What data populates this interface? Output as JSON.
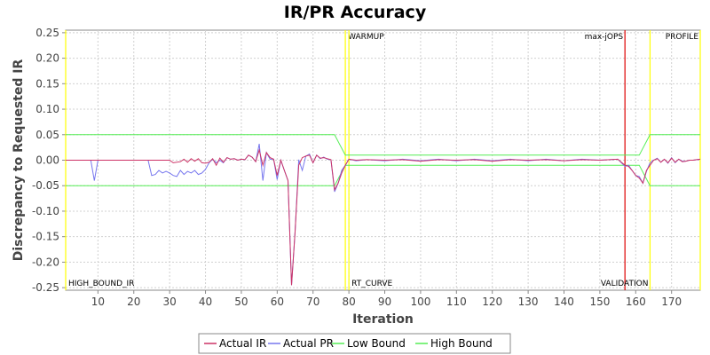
{
  "chart_data": {
    "type": "line",
    "title": "IR/PR Accuracy",
    "xlabel": "Iteration",
    "ylabel": "Discrepancy to Requested IR",
    "xlim": [
      1,
      178
    ],
    "ylim": [
      -0.255,
      0.255
    ],
    "x_ticks": [
      10,
      20,
      30,
      40,
      50,
      60,
      70,
      80,
      90,
      100,
      110,
      120,
      130,
      140,
      150,
      160,
      170
    ],
    "y_ticks": [
      0.25,
      0.2,
      0.15,
      0.1,
      0.05,
      0.0,
      -0.05,
      -0.1,
      -0.15,
      -0.2,
      -0.25
    ],
    "grid": true,
    "legend_position": "bottom",
    "markers": [
      {
        "label": "HIGH_BOUND_IR",
        "x": 1,
        "color": "#ffff00",
        "label_position": "bottom"
      },
      {
        "label": "WARMUP",
        "x": 79,
        "color": "#ffff00",
        "label_position": "top"
      },
      {
        "label": "RT_CURVE",
        "x": 80,
        "color": "#ffff00",
        "label_position": "bottom"
      },
      {
        "label": "max-jOPS",
        "x": 157,
        "color": "#dd0000",
        "label_position": "top-left"
      },
      {
        "label": "VALIDATION",
        "x": 164,
        "color": "#ffff00",
        "label_position": "bottom-left"
      },
      {
        "label": "PROFILE",
        "x": 178,
        "color": "#ffff00",
        "label_position": "top-left"
      }
    ],
    "series": [
      {
        "name": "Actual IR",
        "color": "#cc3366",
        "points": [
          [
            1,
            0
          ],
          [
            5,
            0
          ],
          [
            10,
            0
          ],
          [
            15,
            0
          ],
          [
            20,
            0
          ],
          [
            25,
            0
          ],
          [
            30,
            0
          ],
          [
            31,
            -0.005
          ],
          [
            33,
            -0.003
          ],
          [
            34,
            0.002
          ],
          [
            35,
            -0.004
          ],
          [
            36,
            0.003
          ],
          [
            37,
            -0.002
          ],
          [
            38,
            0.003
          ],
          [
            39,
            -0.005
          ],
          [
            40,
            -0.006
          ],
          [
            41,
            -0.004
          ],
          [
            42,
            0.003
          ],
          [
            43,
            -0.01
          ],
          [
            44,
            0.004
          ],
          [
            45,
            -0.004
          ],
          [
            46,
            0.005
          ],
          [
            47,
            0.002
          ],
          [
            48,
            0.003
          ],
          [
            49,
            0
          ],
          [
            50,
            0.002
          ],
          [
            51,
            0.001
          ],
          [
            52,
            0.01
          ],
          [
            53,
            0.006
          ],
          [
            54,
            -0.003
          ],
          [
            55,
            0.02
          ],
          [
            56,
            -0.01
          ],
          [
            57,
            0.015
          ],
          [
            58,
            0.005
          ],
          [
            59,
            0.002
          ],
          [
            60,
            -0.03
          ],
          [
            61,
            0
          ],
          [
            62,
            -0.02
          ],
          [
            63,
            -0.04
          ],
          [
            64,
            -0.245
          ],
          [
            65,
            -0.14
          ],
          [
            66,
            -0.01
          ],
          [
            67,
            0.005
          ],
          [
            68,
            0.008
          ],
          [
            69,
            0.01
          ],
          [
            70,
            -0.005
          ],
          [
            71,
            0.01
          ],
          [
            72,
            0.004
          ],
          [
            73,
            0.005
          ],
          [
            74,
            0.003
          ],
          [
            75,
            0.001
          ],
          [
            76,
            -0.058
          ],
          [
            77,
            -0.045
          ],
          [
            78,
            -0.025
          ],
          [
            79,
            -0.01
          ],
          [
            80,
            0.002
          ],
          [
            82,
            0
          ],
          [
            85,
            0.001
          ],
          [
            90,
            0
          ],
          [
            95,
            0.001
          ],
          [
            100,
            -0.002
          ],
          [
            105,
            0.001
          ],
          [
            110,
            0
          ],
          [
            115,
            0.001
          ],
          [
            120,
            -0.002
          ],
          [
            125,
            0.001
          ],
          [
            130,
            0
          ],
          [
            135,
            0.001
          ],
          [
            140,
            -0.001
          ],
          [
            145,
            0.001
          ],
          [
            150,
            0
          ],
          [
            155,
            0.002
          ],
          [
            157,
            -0.01
          ],
          [
            158,
            -0.012
          ],
          [
            159,
            -0.02
          ],
          [
            160,
            -0.03
          ],
          [
            161,
            -0.035
          ],
          [
            162,
            -0.045
          ],
          [
            163,
            -0.02
          ],
          [
            164,
            -0.01
          ],
          [
            165,
            0
          ],
          [
            166,
            0.003
          ],
          [
            167,
            -0.004
          ],
          [
            168,
            0.002
          ],
          [
            169,
            -0.005
          ],
          [
            170,
            0.004
          ],
          [
            171,
            -0.004
          ],
          [
            172,
            0.002
          ],
          [
            173,
            -0.003
          ],
          [
            174,
            -0.002
          ],
          [
            175,
            0
          ],
          [
            176,
            0
          ],
          [
            177,
            0.001
          ],
          [
            178,
            0.002
          ]
        ]
      },
      {
        "name": "Actual PR",
        "color": "#7777ee",
        "points": [
          [
            1,
            0
          ],
          [
            8,
            0
          ],
          [
            9,
            -0.04
          ],
          [
            10,
            0
          ],
          [
            15,
            0
          ],
          [
            20,
            0
          ],
          [
            24,
            0
          ],
          [
            25,
            -0.03
          ],
          [
            26,
            -0.028
          ],
          [
            27,
            -0.02
          ],
          [
            28,
            -0.025
          ],
          [
            29,
            -0.022
          ],
          [
            30,
            -0.025
          ],
          [
            31,
            -0.03
          ],
          [
            32,
            -0.032
          ],
          [
            33,
            -0.02
          ],
          [
            34,
            -0.028
          ],
          [
            35,
            -0.022
          ],
          [
            36,
            -0.025
          ],
          [
            37,
            -0.02
          ],
          [
            38,
            -0.028
          ],
          [
            39,
            -0.025
          ],
          [
            40,
            -0.018
          ],
          [
            41,
            -0.005
          ],
          [
            42,
            0.002
          ],
          [
            43,
            -0.005
          ],
          [
            44,
            0
          ],
          [
            45,
            -0.005
          ],
          [
            46,
            0.005
          ],
          [
            47,
            0.002
          ],
          [
            48,
            0.003
          ],
          [
            49,
            0
          ],
          [
            50,
            0.002
          ],
          [
            51,
            0.001
          ],
          [
            52,
            0.01
          ],
          [
            53,
            0.006
          ],
          [
            54,
            -0.003
          ],
          [
            55,
            0.032
          ],
          [
            56,
            -0.04
          ],
          [
            57,
            0.015
          ],
          [
            58,
            0.002
          ],
          [
            59,
            0.002
          ],
          [
            60,
            -0.038
          ],
          [
            61,
            0
          ],
          [
            62,
            -0.02
          ],
          [
            63,
            -0.04
          ],
          [
            64,
            -0.245
          ],
          [
            65,
            -0.14
          ],
          [
            66,
            0.001
          ],
          [
            67,
            -0.02
          ],
          [
            68,
            0.008
          ],
          [
            69,
            0.012
          ],
          [
            70,
            -0.005
          ],
          [
            71,
            0.01
          ],
          [
            72,
            0.003
          ],
          [
            73,
            0.006
          ],
          [
            74,
            0.002
          ],
          [
            75,
            0.001
          ],
          [
            76,
            -0.062
          ],
          [
            77,
            -0.045
          ],
          [
            78,
            -0.02
          ],
          [
            79,
            -0.01
          ],
          [
            80,
            0.002
          ],
          [
            82,
            -0.001
          ],
          [
            85,
            0.001
          ],
          [
            90,
            -0.001
          ],
          [
            95,
            0.002
          ],
          [
            100,
            -0.001
          ],
          [
            105,
            0.002
          ],
          [
            110,
            -0.001
          ],
          [
            115,
            0.002
          ],
          [
            120,
            -0.001
          ],
          [
            125,
            0.002
          ],
          [
            130,
            -0.001
          ],
          [
            135,
            0.002
          ],
          [
            140,
            -0.001
          ],
          [
            145,
            0.002
          ],
          [
            150,
            0
          ],
          [
            155,
            0.002
          ],
          [
            157,
            -0.012
          ],
          [
            158,
            -0.01
          ],
          [
            159,
            -0.02
          ],
          [
            160,
            -0.03
          ],
          [
            161,
            -0.032
          ],
          [
            162,
            -0.045
          ],
          [
            163,
            -0.022
          ],
          [
            164,
            -0.005
          ],
          [
            165,
            0
          ],
          [
            166,
            0.004
          ],
          [
            167,
            -0.004
          ],
          [
            168,
            0.002
          ],
          [
            169,
            -0.006
          ],
          [
            170,
            0.005
          ],
          [
            171,
            -0.005
          ],
          [
            172,
            0.002
          ],
          [
            173,
            -0.002
          ],
          [
            174,
            -0.002
          ],
          [
            175,
            0
          ],
          [
            176,
            0
          ],
          [
            177,
            0.001
          ],
          [
            178,
            0.002
          ]
        ]
      },
      {
        "name": "Low Bound",
        "color": "#55ee55",
        "points": [
          [
            1,
            -0.05
          ],
          [
            76,
            -0.05
          ],
          [
            79,
            -0.01
          ],
          [
            161,
            -0.01
          ],
          [
            164,
            -0.05
          ],
          [
            178,
            -0.05
          ]
        ]
      },
      {
        "name": "High Bound",
        "color": "#55ee55",
        "points": [
          [
            1,
            0.05
          ],
          [
            76,
            0.05
          ],
          [
            79,
            0.01
          ],
          [
            161,
            0.01
          ],
          [
            164,
            0.05
          ],
          [
            178,
            0.05
          ]
        ]
      }
    ]
  }
}
